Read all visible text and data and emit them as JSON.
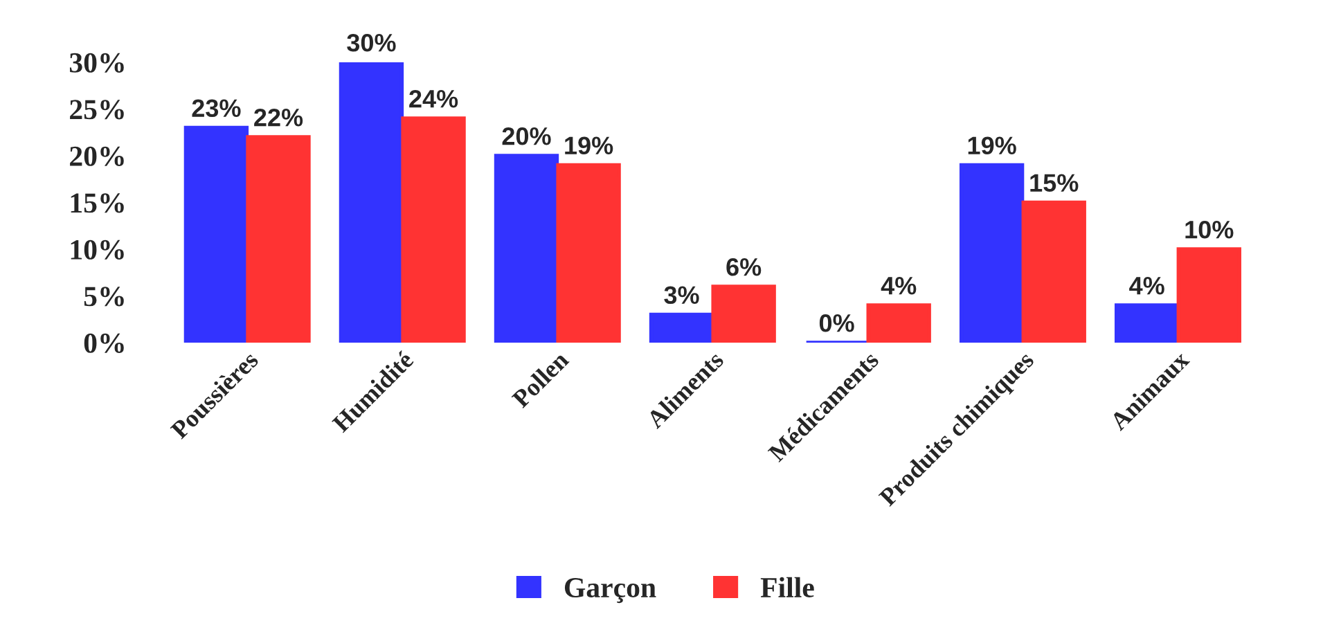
{
  "chart_data": {
    "type": "bar",
    "categories": [
      "Poussières",
      "Humidité",
      "Pollen",
      "Aliments",
      "Médicaments",
      "Produits chimiques",
      "Animaux"
    ],
    "series": [
      {
        "name": "Garçon",
        "color": "#3333ff",
        "values": [
          23,
          30,
          20,
          3,
          0,
          19,
          4
        ],
        "value_labels": [
          "23%",
          "30%",
          "20%",
          "3%",
          "0%",
          "19%",
          "4%"
        ]
      },
      {
        "name": "Fille",
        "color": "#ff3333",
        "values": [
          22,
          24,
          19,
          6,
          4,
          15,
          10
        ],
        "value_labels": [
          "22%",
          "24%",
          "19%",
          "6%",
          "4%",
          "15%",
          "10%"
        ]
      }
    ],
    "ylim": [
      0,
      30
    ],
    "yticks": [
      {
        "value": 0,
        "label": "0%"
      },
      {
        "value": 5,
        "label": "5%"
      },
      {
        "value": 10,
        "label": "10%"
      },
      {
        "value": 15,
        "label": "15%"
      },
      {
        "value": 20,
        "label": "20%"
      },
      {
        "value": 25,
        "label": "25%"
      },
      {
        "value": 30,
        "label": "30%"
      }
    ],
    "grid": false,
    "legend": "bottom"
  }
}
